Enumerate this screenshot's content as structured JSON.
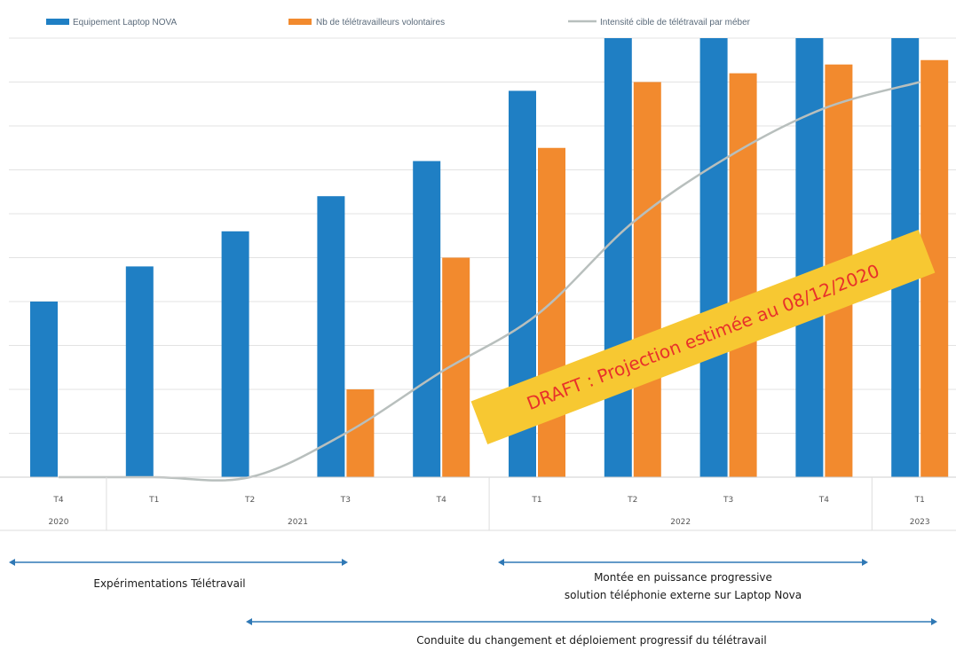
{
  "colors": {
    "laptop": "#1f7fc4",
    "volunteers": "#f28a2e",
    "intensity": "#b8bfbd",
    "grid": "#e3e3e3",
    "draft_bg": "#f7c832",
    "draft_text": "#e8312a",
    "arrow": "#2f78b5"
  },
  "legend": {
    "laptop": "Equipement Laptop NOVA",
    "volunteers": "Nb de télétravailleurs volontaires",
    "intensity": "Intensité cible de télétravail par méber"
  },
  "chart_data": {
    "type": "bar",
    "categories": [
      "T4",
      "T1",
      "T2",
      "T3",
      "T4",
      "T1",
      "T2",
      "T3",
      "T4",
      "T1"
    ],
    "years": [
      {
        "label": "2020",
        "start": 0,
        "end": 0
      },
      {
        "label": "2021",
        "start": 1,
        "end": 4
      },
      {
        "label": "2022",
        "start": 5,
        "end": 8
      },
      {
        "label": "2023",
        "start": 9,
        "end": 9
      }
    ],
    "ylim": [
      0,
      10
    ],
    "grid": true,
    "legend_position": "top",
    "series": [
      {
        "name": "Equipement Laptop NOVA",
        "kind": "bar",
        "values": [
          4.0,
          4.8,
          5.6,
          6.4,
          7.2,
          8.8,
          10.0,
          10.0,
          10.0,
          10.0
        ]
      },
      {
        "name": "Nb de télétravailleurs volontaires",
        "kind": "bar",
        "values": [
          0,
          0,
          0,
          2.0,
          5.0,
          7.5,
          9.0,
          9.2,
          9.4,
          9.5
        ]
      },
      {
        "name": "Intensité cible de télétravail par méber",
        "kind": "line",
        "values": [
          0,
          0,
          0,
          1.0,
          2.4,
          3.7,
          5.8,
          7.3,
          8.4,
          9.0
        ]
      }
    ]
  },
  "draft_label": "DRAFT : Projection estimée au 08/12/2020",
  "annotations": [
    {
      "lines": [
        "Expérimentations Télétravail"
      ],
      "from": 0,
      "to": 3.5
    },
    {
      "lines": [
        "Montée en puissance progressive",
        "solution téléphonie externe sur Laptop Nova"
      ],
      "from": 4.5,
      "to": 8.5
    },
    {
      "lines": [
        "Conduite du changement et déploiement progressif du télétravail"
      ],
      "from": 2,
      "to": 9.5
    }
  ]
}
